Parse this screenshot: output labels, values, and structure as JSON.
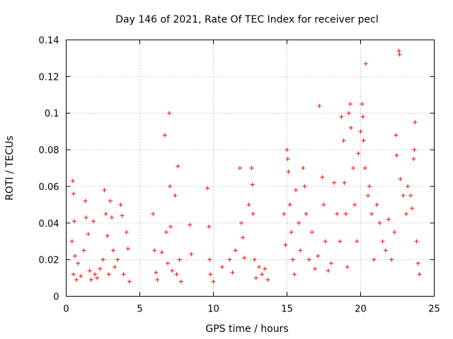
{
  "chart_data": {
    "type": "scatter",
    "title": "Day 146 of 2021, Rate Of TEC Index for receiver pecl",
    "xlabel": "GPS time / hours",
    "ylabel": "ROTI / TECUs",
    "xlim": [
      0,
      25
    ],
    "ylim": [
      0,
      0.14
    ],
    "xticks": [
      0,
      5,
      10,
      15,
      20,
      25
    ],
    "yticks": [
      0,
      0.02,
      0.04,
      0.06,
      0.08,
      0.1,
      0.12,
      0.14
    ],
    "xtick_labels": [
      "0",
      "5",
      "10",
      "15",
      "20",
      "25"
    ],
    "ytick_labels": [
      "0",
      "0.02",
      "0.04",
      "0.06",
      "0.08",
      "0.1",
      "0.12",
      "0.14"
    ],
    "grid": true,
    "marker": "+",
    "color": "#ff0000",
    "series": [
      {
        "name": "ROTI",
        "points": [
          [
            0.45,
            0.063
          ],
          [
            0.5,
            0.056
          ],
          [
            0.55,
            0.041
          ],
          [
            0.4,
            0.03
          ],
          [
            0.6,
            0.022
          ],
          [
            0.5,
            0.012
          ],
          [
            0.7,
            0.009
          ],
          [
            0.8,
            0.018
          ],
          [
            1.0,
            0.011
          ],
          [
            1.2,
            0.025
          ],
          [
            1.3,
            0.052
          ],
          [
            1.35,
            0.043
          ],
          [
            1.5,
            0.034
          ],
          [
            1.6,
            0.014
          ],
          [
            1.7,
            0.009
          ],
          [
            1.85,
            0.041
          ],
          [
            1.95,
            0.012
          ],
          [
            2.1,
            0.01
          ],
          [
            2.3,
            0.015
          ],
          [
            2.5,
            0.02
          ],
          [
            2.6,
            0.058
          ],
          [
            2.7,
            0.045
          ],
          [
            2.8,
            0.033
          ],
          [
            2.9,
            0.012
          ],
          [
            3.0,
            0.052
          ],
          [
            3.1,
            0.043
          ],
          [
            3.2,
            0.025
          ],
          [
            3.3,
            0.016
          ],
          [
            3.5,
            0.02
          ],
          [
            3.7,
            0.05
          ],
          [
            3.8,
            0.044
          ],
          [
            3.9,
            0.012
          ],
          [
            4.1,
            0.035
          ],
          [
            4.2,
            0.026
          ],
          [
            4.3,
            0.008
          ],
          [
            5.9,
            0.045
          ],
          [
            6.0,
            0.025
          ],
          [
            6.1,
            0.013
          ],
          [
            6.2,
            0.009
          ],
          [
            6.5,
            0.024
          ],
          [
            6.7,
            0.088
          ],
          [
            6.8,
            0.035
          ],
          [
            6.9,
            0.018
          ],
          [
            7.0,
            0.1
          ],
          [
            7.05,
            0.06
          ],
          [
            7.1,
            0.038
          ],
          [
            7.2,
            0.014
          ],
          [
            7.4,
            0.055
          ],
          [
            7.5,
            0.012
          ],
          [
            7.6,
            0.071
          ],
          [
            7.7,
            0.02
          ],
          [
            7.8,
            0.008
          ],
          [
            8.4,
            0.039
          ],
          [
            8.5,
            0.023
          ],
          [
            9.6,
            0.059
          ],
          [
            9.7,
            0.038
          ],
          [
            9.75,
            0.02
          ],
          [
            9.8,
            0.012
          ],
          [
            10.0,
            0.008
          ],
          [
            10.6,
            0.016
          ],
          [
            11.1,
            0.02
          ],
          [
            11.3,
            0.013
          ],
          [
            11.5,
            0.025
          ],
          [
            11.8,
            0.07
          ],
          [
            11.9,
            0.04
          ],
          [
            12.0,
            0.032
          ],
          [
            12.1,
            0.021
          ],
          [
            12.4,
            0.05
          ],
          [
            12.6,
            0.07
          ],
          [
            12.65,
            0.061
          ],
          [
            12.7,
            0.045
          ],
          [
            12.8,
            0.02
          ],
          [
            12.9,
            0.01
          ],
          [
            13.1,
            0.016
          ],
          [
            13.3,
            0.012
          ],
          [
            13.5,
            0.015
          ],
          [
            13.7,
            0.009
          ],
          [
            14.8,
            0.045
          ],
          [
            14.9,
            0.028
          ],
          [
            15.0,
            0.08
          ],
          [
            15.05,
            0.075
          ],
          [
            15.1,
            0.068
          ],
          [
            15.2,
            0.05
          ],
          [
            15.3,
            0.035
          ],
          [
            15.4,
            0.02
          ],
          [
            15.5,
            0.012
          ],
          [
            15.6,
            0.058
          ],
          [
            15.8,
            0.04
          ],
          [
            15.9,
            0.025
          ],
          [
            16.1,
            0.07
          ],
          [
            16.2,
            0.06
          ],
          [
            16.3,
            0.045
          ],
          [
            16.5,
            0.02
          ],
          [
            16.7,
            0.035
          ],
          [
            16.9,
            0.015
          ],
          [
            17.1,
            0.022
          ],
          [
            17.2,
            0.104
          ],
          [
            17.4,
            0.065
          ],
          [
            17.5,
            0.05
          ],
          [
            17.6,
            0.03
          ],
          [
            17.8,
            0.014
          ],
          [
            18.0,
            0.018
          ],
          [
            18.2,
            0.062
          ],
          [
            18.4,
            0.045
          ],
          [
            18.6,
            0.03
          ],
          [
            18.7,
            0.098
          ],
          [
            18.85,
            0.085
          ],
          [
            18.9,
            0.062
          ],
          [
            19.0,
            0.045
          ],
          [
            19.1,
            0.016
          ],
          [
            19.2,
            0.1
          ],
          [
            19.3,
            0.105
          ],
          [
            19.35,
            0.092
          ],
          [
            19.5,
            0.07
          ],
          [
            19.6,
            0.05
          ],
          [
            19.75,
            0.03
          ],
          [
            19.85,
            0.078
          ],
          [
            20.0,
            0.09
          ],
          [
            20.1,
            0.105
          ],
          [
            20.15,
            0.098
          ],
          [
            20.2,
            0.085
          ],
          [
            20.3,
            0.07
          ],
          [
            20.35,
            0.127
          ],
          [
            20.5,
            0.055
          ],
          [
            20.6,
            0.06
          ],
          [
            20.75,
            0.045
          ],
          [
            20.9,
            0.02
          ],
          [
            21.1,
            0.05
          ],
          [
            21.3,
            0.04
          ],
          [
            21.5,
            0.03
          ],
          [
            21.7,
            0.025
          ],
          [
            21.9,
            0.042
          ],
          [
            22.1,
            0.02
          ],
          [
            22.3,
            0.035
          ],
          [
            22.4,
            0.088
          ],
          [
            22.45,
            0.077
          ],
          [
            22.6,
            0.134
          ],
          [
            22.65,
            0.132
          ],
          [
            22.7,
            0.064
          ],
          [
            22.9,
            0.055
          ],
          [
            23.1,
            0.045
          ],
          [
            23.2,
            0.06
          ],
          [
            23.4,
            0.055
          ],
          [
            23.5,
            0.048
          ],
          [
            23.6,
            0.075
          ],
          [
            23.65,
            0.08
          ],
          [
            23.7,
            0.095
          ],
          [
            23.8,
            0.03
          ],
          [
            23.9,
            0.018
          ],
          [
            24.0,
            0.012
          ]
        ]
      }
    ]
  }
}
